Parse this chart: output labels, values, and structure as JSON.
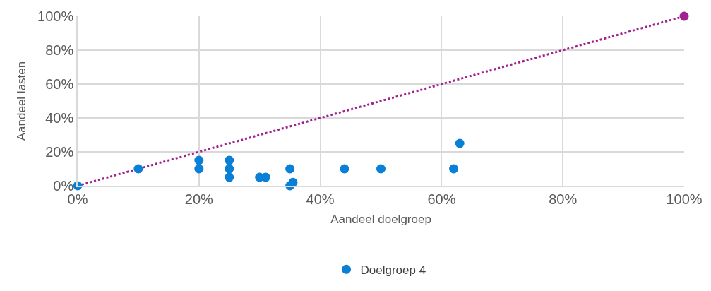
{
  "chart_data": {
    "type": "scatter",
    "xlabel": "Aandeel doelgroep",
    "ylabel": "Aandeel lasten",
    "xlim": [
      0,
      100
    ],
    "xticks": [
      {
        "value": 0,
        "label": "0%"
      },
      {
        "value": 20,
        "label": "20%"
      },
      {
        "value": 40,
        "label": "40%"
      },
      {
        "value": 60,
        "label": "60%"
      },
      {
        "value": 80,
        "label": "80%"
      },
      {
        "value": 100,
        "label": "100%"
      }
    ],
    "ylim": [
      0,
      100
    ],
    "yticks": [
      {
        "value": 0,
        "label": "0%"
      },
      {
        "value": 20,
        "label": "20%"
      },
      {
        "value": 40,
        "label": "40%"
      },
      {
        "value": 60,
        "label": "60%"
      },
      {
        "value": 80,
        "label": "80%"
      },
      {
        "value": 100,
        "label": "100%"
      }
    ],
    "grid": true,
    "legend": "bottom",
    "marker": "circle",
    "series": [
      {
        "type": "line",
        "color": "#a0218f",
        "line_style": "dotted",
        "marker": "none",
        "x": [
          0,
          100
        ],
        "values": [
          0,
          100
        ]
      },
      {
        "color": "#a0218f",
        "x": [
          100
        ],
        "values": [
          100
        ]
      },
      {
        "name": "Doelgroep 4",
        "color": "#0a7fd6",
        "x": [
          0,
          10,
          20,
          20,
          25,
          25,
          25,
          30,
          31,
          35,
          35,
          35.5,
          44,
          50,
          62,
          63
        ],
        "values": [
          0,
          10,
          15,
          10,
          15,
          10,
          5,
          5,
          5,
          10,
          0,
          2,
          10,
          10,
          10,
          25
        ]
      }
    ]
  }
}
